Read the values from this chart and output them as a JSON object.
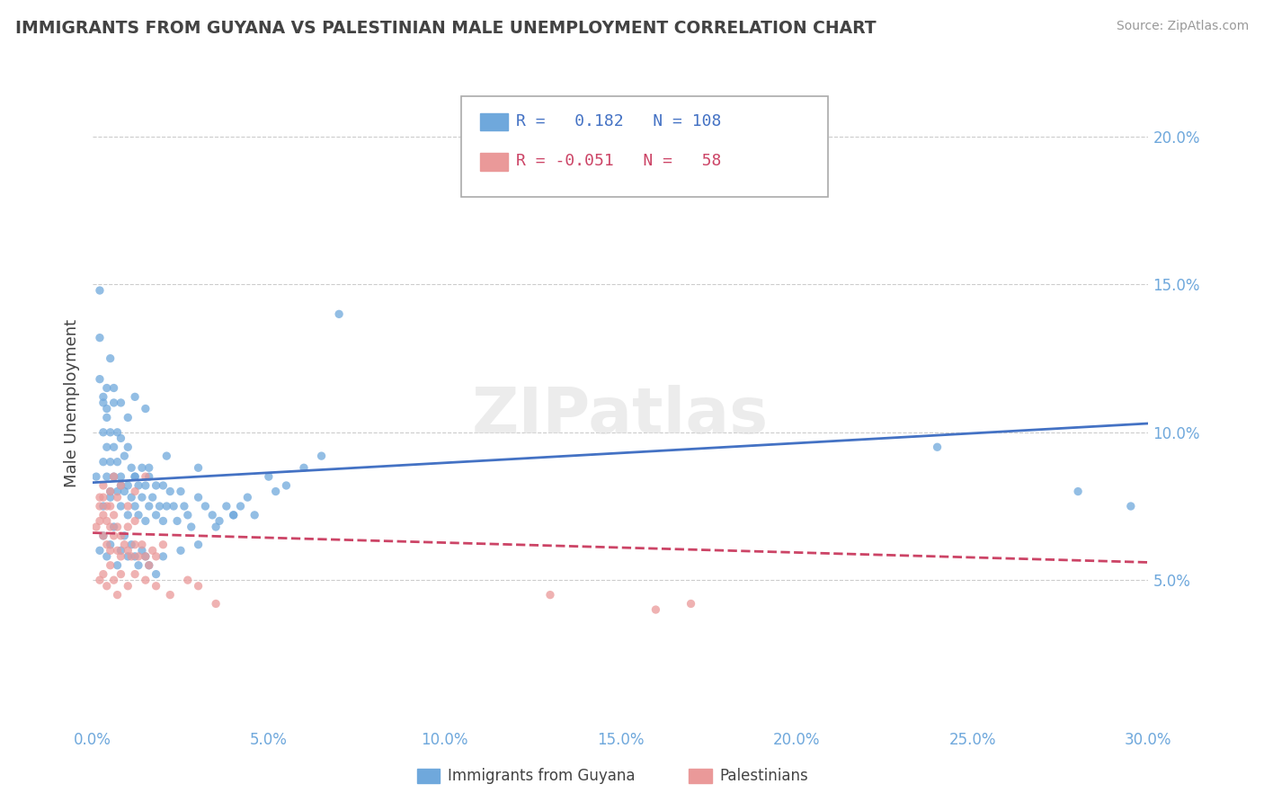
{
  "title": "IMMIGRANTS FROM GUYANA VS PALESTINIAN MALE UNEMPLOYMENT CORRELATION CHART",
  "source": "Source: ZipAtlas.com",
  "ylabel": "Male Unemployment",
  "xlim": [
    0.0,
    0.3
  ],
  "ylim": [
    0.0,
    0.22
  ],
  "xticks": [
    0.0,
    0.05,
    0.1,
    0.15,
    0.2,
    0.25,
    0.3
  ],
  "xticklabels": [
    "0.0%",
    "5.0%",
    "10.0%",
    "15.0%",
    "20.0%",
    "25.0%",
    "30.0%"
  ],
  "yticks_right": [
    0.05,
    0.1,
    0.15,
    0.2
  ],
  "yticklabels_right": [
    "5.0%",
    "10.0%",
    "15.0%",
    "20.0%"
  ],
  "blue_color": "#6fa8dc",
  "blue_line_color": "#4472c4",
  "pink_color": "#ea9999",
  "pink_line_color": "#cc4466",
  "title_color": "#434343",
  "axis_tick_color": "#6fa8dc",
  "watermark_text": "ZIPatlas",
  "blue_r": 0.182,
  "blue_n": 108,
  "pink_r": -0.051,
  "pink_n": 58,
  "blue_trend": [
    0.0,
    0.3,
    0.083,
    0.103
  ],
  "pink_trend": [
    0.0,
    0.3,
    0.066,
    0.056
  ],
  "blue_scatter_x": [
    0.001,
    0.002,
    0.002,
    0.003,
    0.003,
    0.003,
    0.004,
    0.004,
    0.004,
    0.004,
    0.005,
    0.005,
    0.005,
    0.005,
    0.006,
    0.006,
    0.006,
    0.007,
    0.007,
    0.007,
    0.008,
    0.008,
    0.008,
    0.009,
    0.009,
    0.01,
    0.01,
    0.01,
    0.011,
    0.011,
    0.012,
    0.012,
    0.013,
    0.013,
    0.014,
    0.014,
    0.015,
    0.015,
    0.016,
    0.016,
    0.017,
    0.018,
    0.018,
    0.019,
    0.02,
    0.02,
    0.021,
    0.022,
    0.023,
    0.024,
    0.025,
    0.026,
    0.027,
    0.028,
    0.03,
    0.03,
    0.032,
    0.034,
    0.036,
    0.038,
    0.04,
    0.042,
    0.044,
    0.046,
    0.05,
    0.052,
    0.055,
    0.06,
    0.065,
    0.07,
    0.002,
    0.003,
    0.004,
    0.005,
    0.006,
    0.007,
    0.008,
    0.009,
    0.01,
    0.011,
    0.012,
    0.013,
    0.014,
    0.015,
    0.016,
    0.018,
    0.02,
    0.025,
    0.03,
    0.035,
    0.04,
    0.003,
    0.005,
    0.008,
    0.012,
    0.016,
    0.021,
    0.24,
    0.28,
    0.295,
    0.002,
    0.003,
    0.004,
    0.006,
    0.008,
    0.01,
    0.012,
    0.015
  ],
  "blue_scatter_y": [
    0.085,
    0.132,
    0.148,
    0.09,
    0.1,
    0.11,
    0.085,
    0.095,
    0.105,
    0.115,
    0.08,
    0.09,
    0.1,
    0.125,
    0.085,
    0.095,
    0.11,
    0.08,
    0.09,
    0.1,
    0.075,
    0.085,
    0.098,
    0.08,
    0.092,
    0.072,
    0.082,
    0.095,
    0.078,
    0.088,
    0.075,
    0.085,
    0.072,
    0.082,
    0.078,
    0.088,
    0.07,
    0.082,
    0.075,
    0.085,
    0.078,
    0.072,
    0.082,
    0.075,
    0.07,
    0.082,
    0.075,
    0.08,
    0.075,
    0.07,
    0.08,
    0.075,
    0.072,
    0.068,
    0.078,
    0.088,
    0.075,
    0.072,
    0.07,
    0.075,
    0.072,
    0.075,
    0.078,
    0.072,
    0.085,
    0.08,
    0.082,
    0.088,
    0.092,
    0.14,
    0.06,
    0.065,
    0.058,
    0.062,
    0.068,
    0.055,
    0.06,
    0.065,
    0.058,
    0.062,
    0.058,
    0.055,
    0.06,
    0.058,
    0.055,
    0.052,
    0.058,
    0.06,
    0.062,
    0.068,
    0.072,
    0.075,
    0.078,
    0.082,
    0.085,
    0.088,
    0.092,
    0.095,
    0.08,
    0.075,
    0.118,
    0.112,
    0.108,
    0.115,
    0.11,
    0.105,
    0.112,
    0.108
  ],
  "pink_scatter_x": [
    0.001,
    0.002,
    0.002,
    0.003,
    0.003,
    0.003,
    0.004,
    0.004,
    0.005,
    0.005,
    0.005,
    0.006,
    0.006,
    0.007,
    0.007,
    0.008,
    0.008,
    0.009,
    0.01,
    0.01,
    0.011,
    0.012,
    0.012,
    0.013,
    0.014,
    0.015,
    0.016,
    0.017,
    0.018,
    0.02,
    0.002,
    0.003,
    0.004,
    0.005,
    0.006,
    0.007,
    0.008,
    0.01,
    0.012,
    0.015,
    0.002,
    0.003,
    0.004,
    0.005,
    0.006,
    0.007,
    0.008,
    0.01,
    0.012,
    0.015,
    0.018,
    0.022,
    0.027,
    0.03,
    0.035,
    0.13,
    0.16,
    0.17
  ],
  "pink_scatter_y": [
    0.068,
    0.07,
    0.075,
    0.065,
    0.072,
    0.078,
    0.062,
    0.07,
    0.068,
    0.075,
    0.06,
    0.065,
    0.072,
    0.06,
    0.068,
    0.058,
    0.065,
    0.062,
    0.06,
    0.068,
    0.058,
    0.062,
    0.07,
    0.058,
    0.062,
    0.058,
    0.055,
    0.06,
    0.058,
    0.062,
    0.078,
    0.082,
    0.075,
    0.08,
    0.085,
    0.078,
    0.082,
    0.075,
    0.08,
    0.085,
    0.05,
    0.052,
    0.048,
    0.055,
    0.05,
    0.045,
    0.052,
    0.048,
    0.052,
    0.05,
    0.048,
    0.045,
    0.05,
    0.048,
    0.042,
    0.045,
    0.04,
    0.042
  ]
}
